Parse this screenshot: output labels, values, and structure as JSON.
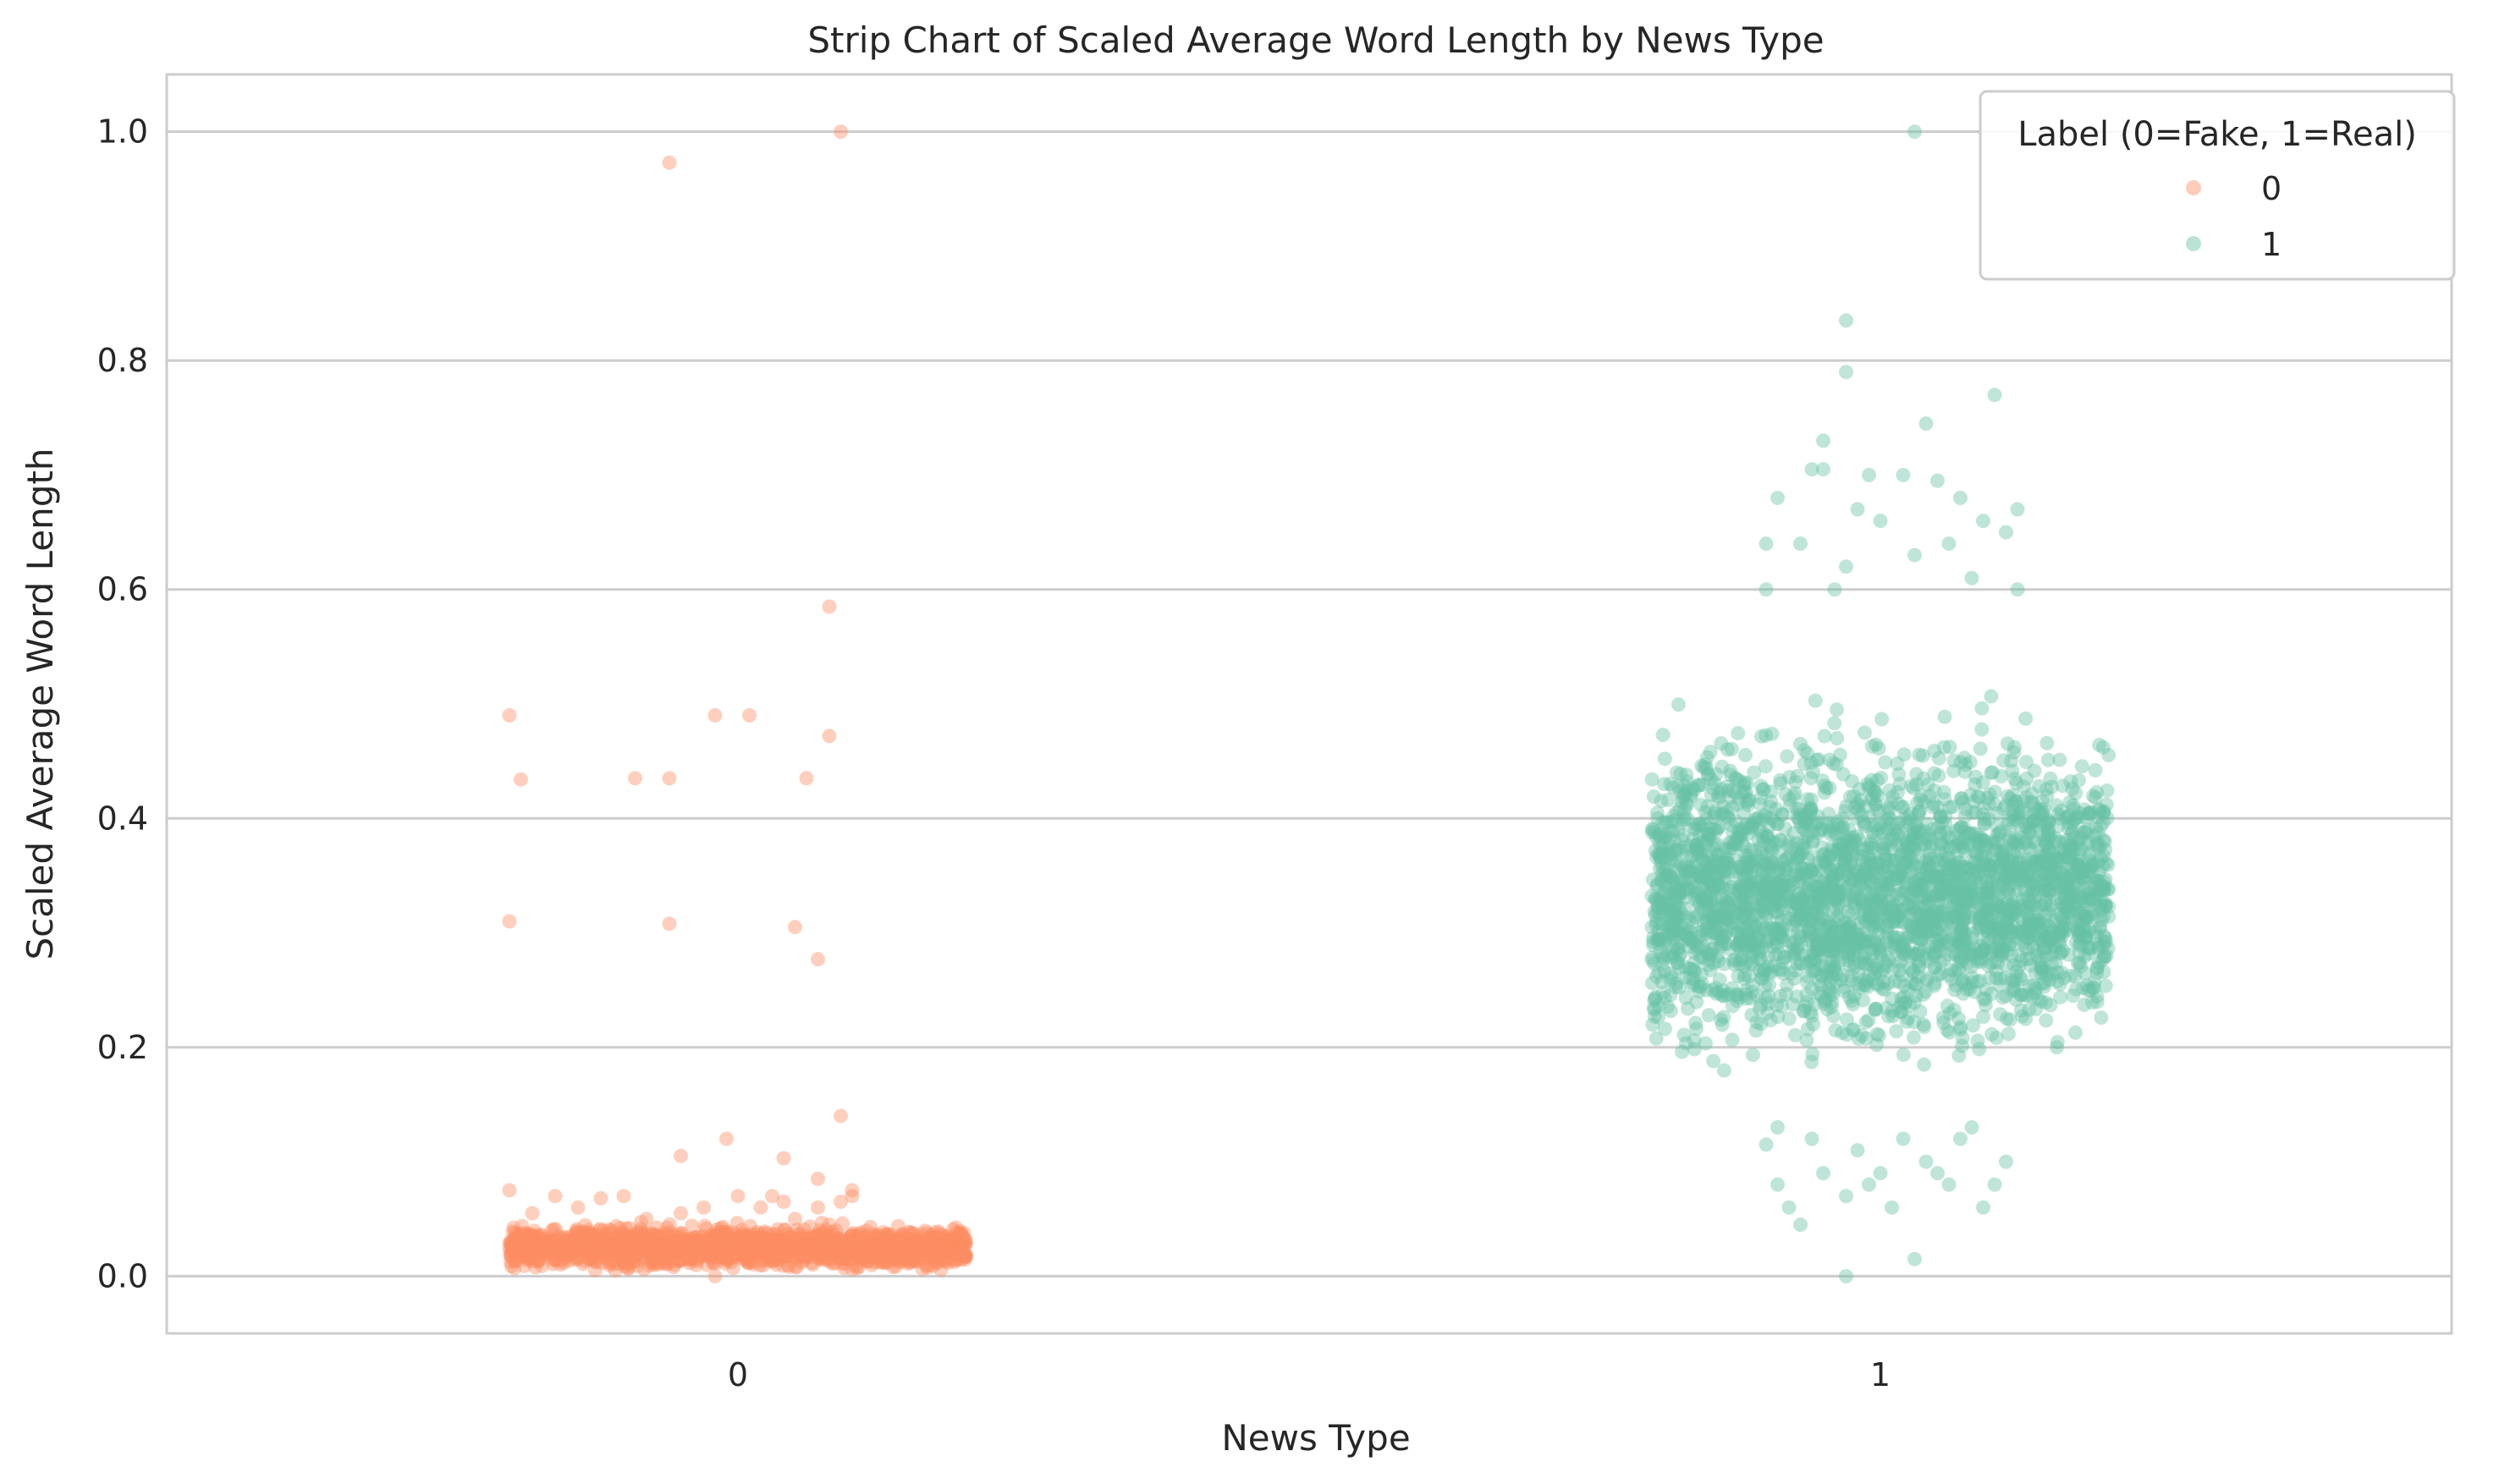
{
  "chart_data": {
    "type": "scatter",
    "subtype": "strip",
    "title": "Strip Chart of Scaled Average Word Length by News Type",
    "xlabel": "News Type",
    "ylabel": "Scaled Average Word Length",
    "categories": [
      "0",
      "1"
    ],
    "ylim": [
      -0.05,
      1.05
    ],
    "yticks": [
      0.0,
      0.2,
      0.4,
      0.6,
      0.8,
      1.0
    ],
    "ytick_labels": [
      "0.0",
      "0.2",
      "0.4",
      "0.6",
      "0.8",
      "1.0"
    ],
    "grid": "horizontal",
    "legend": {
      "title": "Label (0=Fake, 1=Real)",
      "placement": "top-right",
      "entries": [
        "0",
        "1"
      ]
    },
    "colors": {
      "0": "#fc8d62",
      "1": "#66c2a5"
    },
    "series": [
      {
        "name": "0",
        "category": "0",
        "color": "#fc8d62",
        "core_range": [
          0.0,
          0.05
        ],
        "outliers": [
          [
            -0.06,
            0.973
          ],
          [
            0.09,
            1.0
          ],
          [
            0.08,
            0.585
          ],
          [
            -0.2,
            0.49
          ],
          [
            -0.02,
            0.49
          ],
          [
            0.01,
            0.49
          ],
          [
            0.08,
            0.472
          ],
          [
            -0.09,
            0.435
          ],
          [
            -0.06,
            0.435
          ],
          [
            -0.19,
            0.434
          ],
          [
            0.06,
            0.435
          ],
          [
            -0.2,
            0.31
          ],
          [
            -0.06,
            0.308
          ],
          [
            0.05,
            0.305
          ],
          [
            0.07,
            0.277
          ],
          [
            0.09,
            0.14
          ],
          [
            -0.01,
            0.12
          ],
          [
            -0.05,
            0.105
          ],
          [
            0.04,
            0.103
          ],
          [
            0.07,
            0.085
          ],
          [
            -0.02,
            0.0
          ],
          [
            -0.1,
            0.07
          ],
          [
            0.1,
            0.075
          ],
          [
            0.07,
            0.06
          ],
          [
            -0.2,
            0.075
          ],
          [
            -0.16,
            0.07
          ],
          [
            -0.12,
            0.068
          ],
          [
            0.0,
            0.07
          ],
          [
            0.03,
            0.07
          ],
          [
            -0.05,
            0.055
          ],
          [
            0.02,
            0.06
          ],
          [
            0.09,
            0.065
          ],
          [
            0.05,
            0.05
          ],
          [
            -0.18,
            0.055
          ],
          [
            0.1,
            0.07
          ],
          [
            0.04,
            0.065
          ],
          [
            -0.03,
            0.06
          ],
          [
            -0.08,
            0.05
          ],
          [
            0.08,
            0.045
          ],
          [
            -0.14,
            0.06
          ]
        ]
      },
      {
        "name": "1",
        "category": "1",
        "color": "#66c2a5",
        "core_range": [
          0.15,
          0.52
        ],
        "outliers": [
          [
            0.03,
            1.0
          ],
          [
            -0.03,
            0.835
          ],
          [
            -0.03,
            0.79
          ],
          [
            0.04,
            0.745
          ],
          [
            0.1,
            0.77
          ],
          [
            -0.05,
            0.73
          ],
          [
            -0.05,
            0.705
          ],
          [
            -0.01,
            0.7
          ],
          [
            0.02,
            0.7
          ],
          [
            0.05,
            0.695
          ],
          [
            -0.06,
            0.705
          ],
          [
            0.07,
            0.68
          ],
          [
            0.12,
            0.67
          ],
          [
            -0.09,
            0.68
          ],
          [
            0.09,
            0.66
          ],
          [
            -0.02,
            0.67
          ],
          [
            0.0,
            0.66
          ],
          [
            -0.07,
            0.64
          ],
          [
            0.06,
            0.64
          ],
          [
            -0.1,
            0.64
          ],
          [
            0.11,
            0.65
          ],
          [
            0.03,
            0.63
          ],
          [
            -0.03,
            0.62
          ],
          [
            0.08,
            0.61
          ],
          [
            -0.04,
            0.6
          ],
          [
            0.12,
            0.6
          ],
          [
            -0.1,
            0.6
          ],
          [
            -0.1,
            0.115
          ],
          [
            -0.09,
            0.08
          ],
          [
            -0.08,
            0.06
          ],
          [
            -0.07,
            0.045
          ],
          [
            -0.03,
            0.07
          ],
          [
            -0.01,
            0.08
          ],
          [
            -0.03,
            0.0
          ],
          [
            0.03,
            0.015
          ],
          [
            0.01,
            0.06
          ],
          [
            0.0,
            0.09
          ],
          [
            0.1,
            0.08
          ],
          [
            0.09,
            0.06
          ],
          [
            0.05,
            0.09
          ],
          [
            0.06,
            0.08
          ],
          [
            0.04,
            0.1
          ],
          [
            0.07,
            0.12
          ],
          [
            -0.05,
            0.09
          ],
          [
            -0.02,
            0.11
          ],
          [
            0.11,
            0.1
          ],
          [
            -0.06,
            0.12
          ],
          [
            0.02,
            0.12
          ],
          [
            -0.09,
            0.13
          ],
          [
            0.08,
            0.13
          ]
        ]
      }
    ]
  }
}
